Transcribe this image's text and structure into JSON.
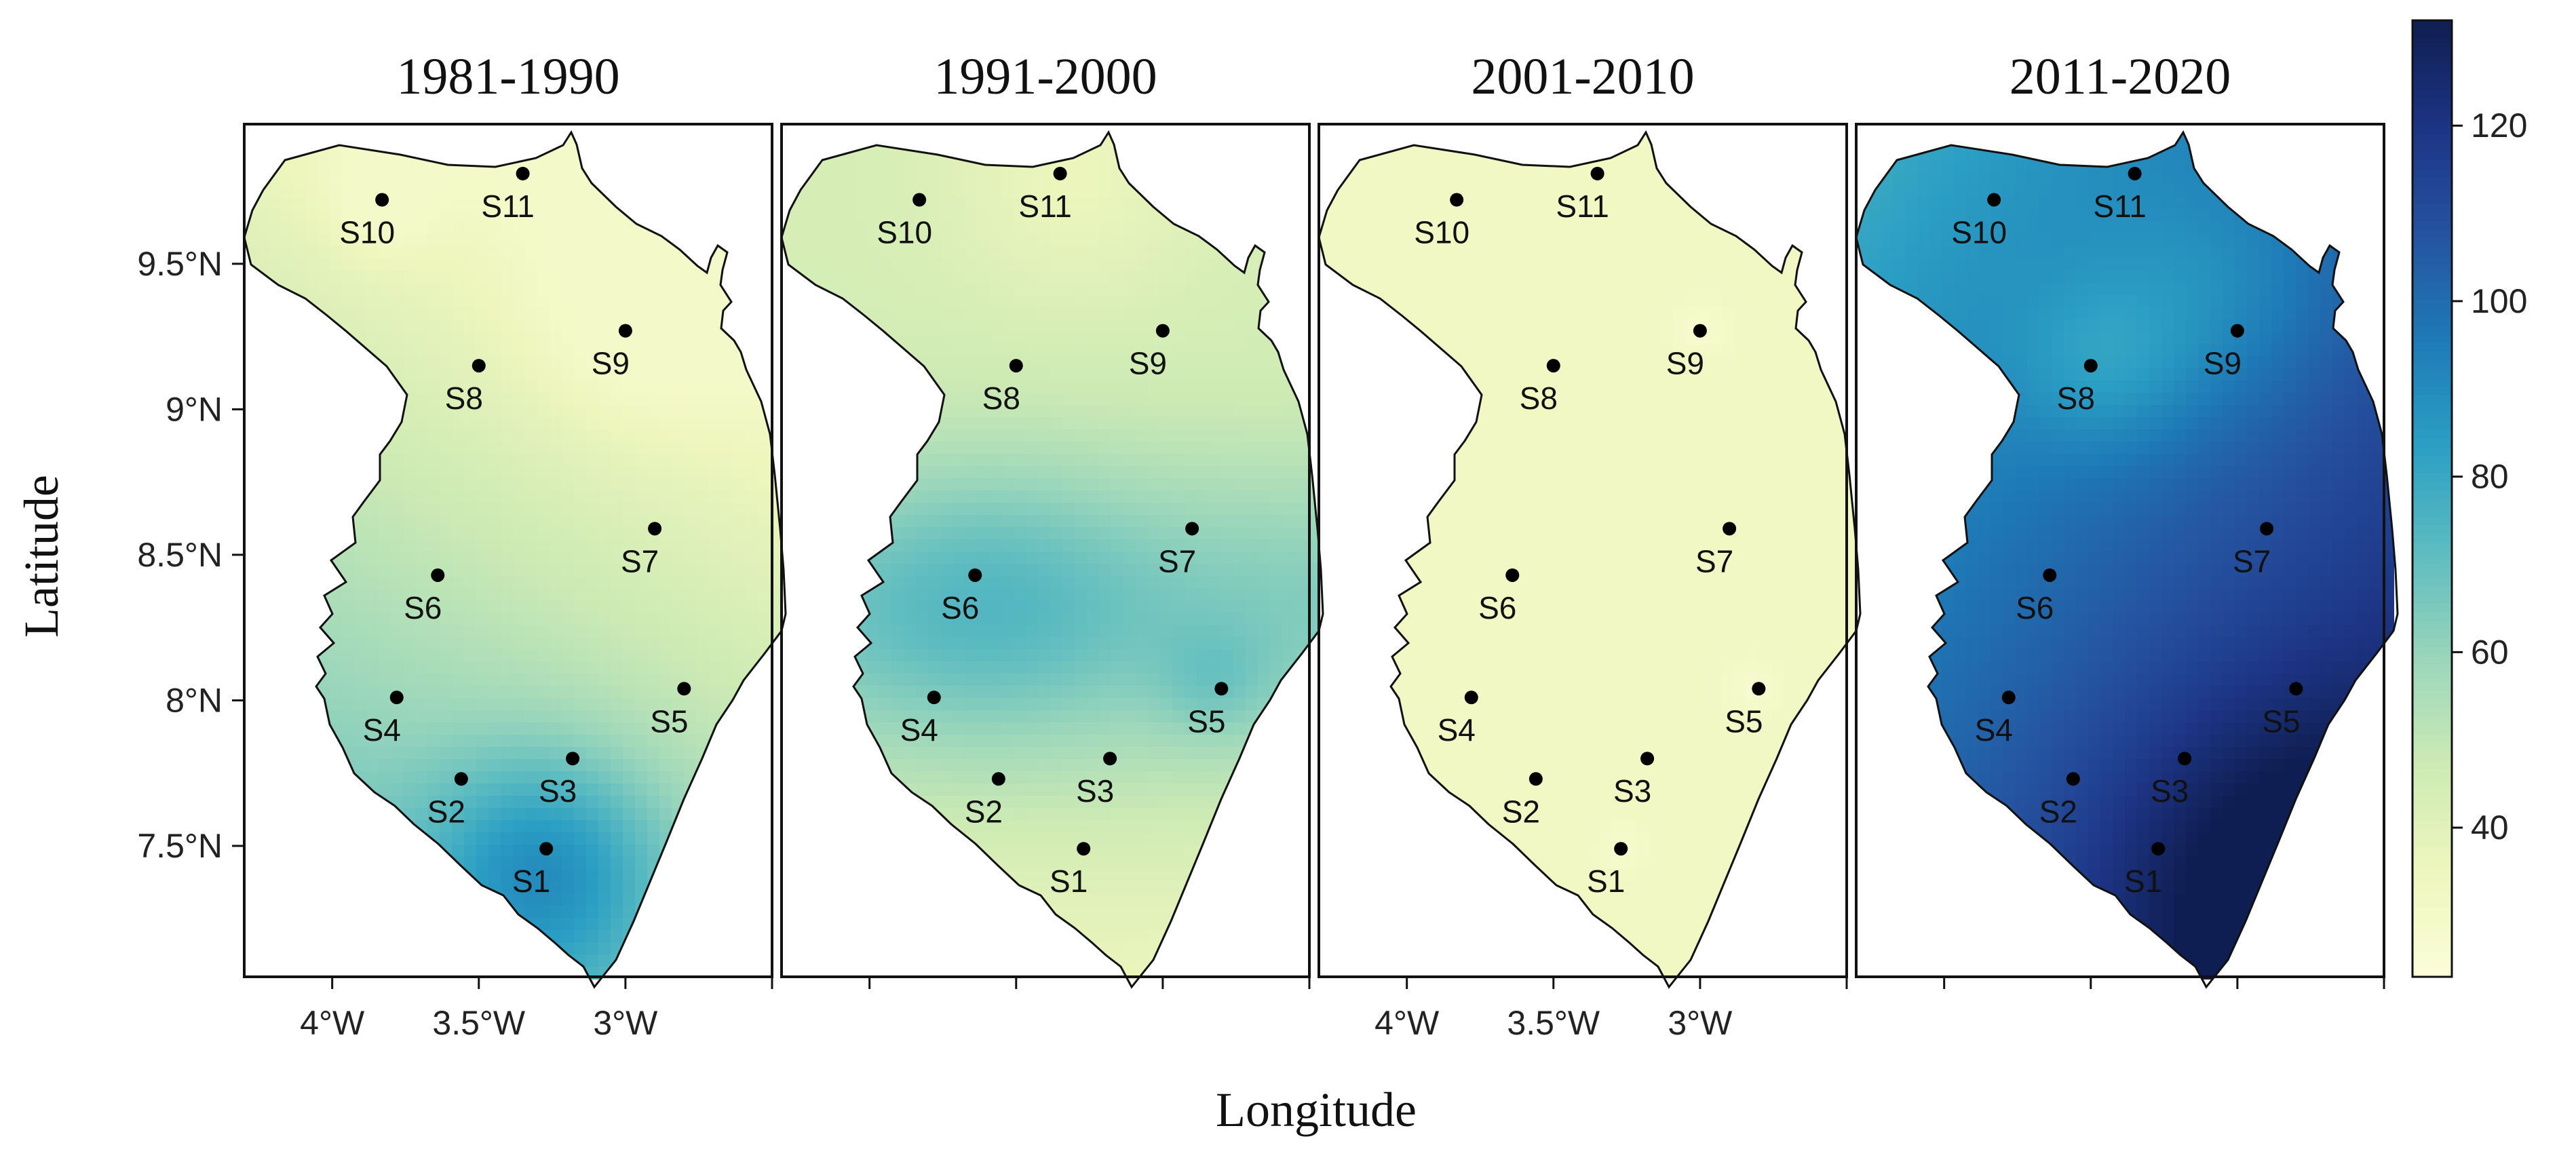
{
  "figure": {
    "x_axis_title": "Longitude",
    "y_axis_title": "Latitude",
    "panels": [
      {
        "title": "1981-1990",
        "show_x_ticks": true,
        "show_y_ticks": true
      },
      {
        "title": "1991-2000",
        "show_x_ticks": false,
        "show_y_ticks": false
      },
      {
        "title": "2001-2010",
        "show_x_ticks": true,
        "show_y_ticks": false
      },
      {
        "title": "2011-2020",
        "show_x_ticks": false,
        "show_y_ticks": false
      }
    ],
    "x_ticks": [
      {
        "value": -4.0,
        "label": "4°W"
      },
      {
        "value": -3.5,
        "label": "3.5°W"
      },
      {
        "value": -3.0,
        "label": "3°W"
      }
    ],
    "x_tick_marks": [
      -4.0,
      -3.5,
      -3.0,
      -2.5
    ],
    "y_ticks": [
      {
        "value": 9.5,
        "label": "9.5°N"
      },
      {
        "value": 9.0,
        "label": "9°N"
      },
      {
        "value": 8.5,
        "label": "8.5°N"
      },
      {
        "value": 8.0,
        "label": "8°N"
      },
      {
        "value": 7.5,
        "label": "7.5°N"
      }
    ],
    "lon_range": [
      -4.3,
      -2.5
    ],
    "lat_range": [
      7.05,
      9.98
    ],
    "colorbar": {
      "range": [
        23,
        132
      ],
      "ticks": [
        40,
        60,
        80,
        100,
        120
      ],
      "colors": [
        "#fbfdd8",
        "#eef6bd",
        "#cdeab4",
        "#9ad6bb",
        "#5dbcc0",
        "#2b9fc4",
        "#1e7ab6",
        "#2553a1",
        "#1d3484",
        "#0f1e52"
      ]
    },
    "stations": [
      {
        "label": "S1",
        "lon": -3.27,
        "lat": 7.49
      },
      {
        "label": "S2",
        "lon": -3.56,
        "lat": 7.73
      },
      {
        "label": "S3",
        "lon": -3.18,
        "lat": 7.8
      },
      {
        "label": "S4",
        "lon": -3.78,
        "lat": 8.01
      },
      {
        "label": "S5",
        "lon": -2.8,
        "lat": 8.04
      },
      {
        "label": "S6",
        "lon": -3.64,
        "lat": 8.43
      },
      {
        "label": "S7",
        "lon": -2.9,
        "lat": 8.59
      },
      {
        "label": "S8",
        "lon": -3.5,
        "lat": 9.15
      },
      {
        "label": "S9",
        "lon": -3.0,
        "lat": 9.27
      },
      {
        "label": "S10",
        "lon": -3.83,
        "lat": 9.72
      },
      {
        "label": "S11",
        "lon": -3.35,
        "lat": 9.81
      }
    ]
  }
}
